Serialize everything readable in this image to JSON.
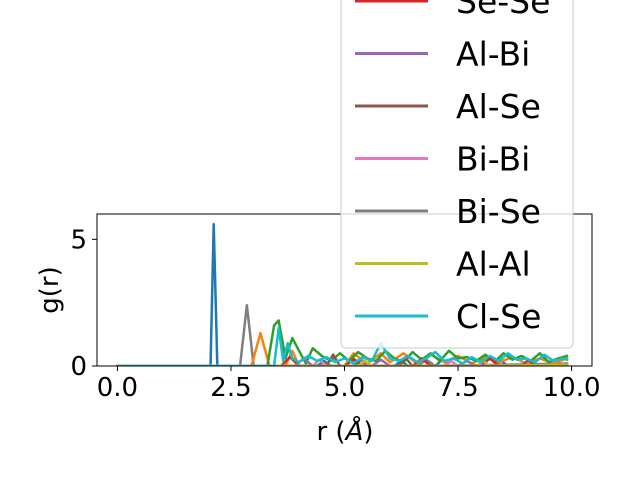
{
  "chart_data": {
    "type": "line",
    "xlabel_main": "r (",
    "xlabel_unit": "Å",
    "xlabel_close": ")",
    "ylabel": "g(r)",
    "xlim": [
      -0.45,
      10.45
    ],
    "ylim": [
      0,
      6.0
    ],
    "x_ticks": [
      {
        "value": 0.0,
        "label": "0.0"
      },
      {
        "value": 2.5,
        "label": "2.5"
      },
      {
        "value": 5.0,
        "label": "5.0"
      },
      {
        "value": 7.5,
        "label": "7.5"
      },
      {
        "value": 10.0,
        "label": "10.0"
      }
    ],
    "y_ticks": [
      {
        "value": 0,
        "label": "0"
      },
      {
        "value": 5,
        "label": "5"
      }
    ],
    "legend": {
      "placement": "upper-right",
      "entries": [
        {
          "name": "Se-Se",
          "color": "#d62728"
        },
        {
          "name": "Al-Bi",
          "color": "#9467bd"
        },
        {
          "name": "Al-Se",
          "color": "#8c564b"
        },
        {
          "name": "Bi-Bi",
          "color": "#e377c2"
        },
        {
          "name": "Bi-Se",
          "color": "#7f7f7f"
        },
        {
          "name": "Al-Al",
          "color": "#bcbd22"
        },
        {
          "name": "Cl-Se",
          "color": "#17becf"
        }
      ]
    },
    "series": [
      {
        "color": "#1f77b4",
        "x": [
          0.0,
          2.05,
          2.12,
          2.2,
          4.4,
          4.55,
          4.7,
          5.2,
          5.35,
          5.5,
          6.1,
          6.25,
          6.4,
          7.0,
          7.15,
          7.3,
          8.3,
          8.45,
          8.6,
          9.9
        ],
        "y": [
          0.0,
          0.0,
          5.6,
          0.0,
          0.0,
          0.2,
          0.0,
          0.0,
          0.25,
          0.0,
          0.0,
          0.2,
          0.0,
          0.0,
          0.25,
          0.0,
          0.0,
          0.2,
          0.0,
          0.05
        ]
      },
      {
        "color": "#7f7f7f",
        "x": [
          0.0,
          2.7,
          2.85,
          3.0,
          5.0,
          5.2,
          5.4,
          6.6,
          6.8,
          7.0,
          9.9
        ],
        "y": [
          0.0,
          0.0,
          2.4,
          0.0,
          0.0,
          0.3,
          0.0,
          0.0,
          0.25,
          0.0,
          0.1
        ]
      },
      {
        "color": "#ff7f0e",
        "x": [
          0.0,
          2.95,
          3.15,
          3.35,
          3.7,
          3.85,
          4.0,
          5.0,
          5.2,
          5.5,
          5.8,
          6.0,
          6.3,
          6.6,
          6.9,
          7.2,
          7.5,
          7.8,
          8.1,
          8.4,
          8.7,
          9.0,
          9.3,
          9.6,
          9.9
        ],
        "y": [
          0.0,
          0.0,
          1.3,
          0.0,
          0.0,
          0.6,
          0.0,
          0.0,
          0.5,
          0.1,
          0.5,
          0.15,
          0.5,
          0.1,
          0.45,
          0.15,
          0.4,
          0.1,
          0.35,
          0.15,
          0.35,
          0.1,
          0.3,
          0.1,
          0.3
        ]
      },
      {
        "color": "#2ca02c",
        "x": [
          0.0,
          3.3,
          3.45,
          3.55,
          3.7,
          3.85,
          4.0,
          4.15,
          4.3,
          4.5,
          4.7,
          4.9,
          5.1,
          5.3,
          5.5,
          5.7,
          5.9,
          6.1,
          6.3,
          6.5,
          6.7,
          6.9,
          7.1,
          7.3,
          7.5,
          7.7,
          7.9,
          8.1,
          8.3,
          8.5,
          8.7,
          8.9,
          9.1,
          9.3,
          9.5,
          9.7,
          9.9
        ],
        "y": [
          0.0,
          0.0,
          1.6,
          1.8,
          0.3,
          1.1,
          0.6,
          0.1,
          0.7,
          0.4,
          0.2,
          0.5,
          0.2,
          0.55,
          0.3,
          0.2,
          0.6,
          0.3,
          0.15,
          0.55,
          0.25,
          0.5,
          0.2,
          0.6,
          0.3,
          0.35,
          0.2,
          0.45,
          0.15,
          0.5,
          0.25,
          0.4,
          0.2,
          0.5,
          0.15,
          0.3,
          0.4
        ]
      },
      {
        "color": "#d62728",
        "x": [
          0.0,
          3.6,
          3.8,
          4.0,
          5.0,
          5.2,
          5.4,
          6.5,
          6.7,
          6.9,
          8.0,
          8.2,
          8.4,
          9.9
        ],
        "y": [
          0.0,
          0.0,
          0.35,
          0.0,
          0.0,
          0.25,
          0.0,
          0.0,
          0.3,
          0.0,
          0.0,
          0.3,
          0.0,
          0.05
        ]
      },
      {
        "color": "#9467bd",
        "x": [
          0.0,
          3.9,
          4.1,
          4.3,
          5.6,
          5.8,
          6.0,
          7.5,
          7.7,
          7.9,
          9.9
        ],
        "y": [
          0.0,
          0.0,
          0.3,
          0.0,
          0.0,
          0.25,
          0.0,
          0.0,
          0.2,
          0.0,
          0.05
        ]
      },
      {
        "color": "#8c564b",
        "x": [
          0.0,
          4.6,
          4.75,
          4.9,
          6.2,
          6.35,
          6.5,
          8.9,
          9.05,
          9.2,
          9.9
        ],
        "y": [
          0.0,
          0.0,
          0.45,
          0.0,
          0.0,
          0.3,
          0.0,
          0.0,
          0.25,
          0.0,
          0.05
        ]
      },
      {
        "color": "#e377c2",
        "x": [
          0.0,
          4.3,
          4.45,
          4.6,
          7.2,
          7.35,
          7.5,
          9.9
        ],
        "y": [
          0.0,
          0.0,
          0.25,
          0.0,
          0.0,
          0.2,
          0.0,
          0.05
        ]
      },
      {
        "color": "#bcbd22",
        "x": [
          0.0,
          5.3,
          5.45,
          5.6,
          7.9,
          8.05,
          8.2,
          9.9
        ],
        "y": [
          0.0,
          0.0,
          0.2,
          0.0,
          0.0,
          0.2,
          0.0,
          0.05
        ]
      },
      {
        "color": "#17becf",
        "x": [
          0.0,
          3.45,
          3.55,
          3.65,
          3.75,
          3.85,
          4.0,
          4.2,
          4.4,
          4.6,
          4.8,
          5.0,
          5.2,
          5.4,
          5.6,
          5.8,
          6.0,
          6.2,
          6.4,
          6.6,
          6.8,
          7.0,
          7.2,
          7.4,
          7.6,
          7.8,
          8.0,
          8.2,
          8.4,
          8.6,
          8.8,
          9.0,
          9.2,
          9.4,
          9.6,
          9.8,
          9.9
        ],
        "y": [
          0.0,
          0.0,
          1.5,
          0.2,
          0.9,
          0.3,
          0.15,
          0.4,
          0.2,
          0.35,
          0.15,
          0.3,
          0.1,
          0.35,
          0.2,
          0.9,
          0.3,
          0.2,
          0.4,
          0.15,
          0.3,
          0.55,
          0.2,
          0.3,
          0.1,
          0.35,
          0.15,
          0.4,
          0.2,
          0.5,
          0.25,
          0.3,
          0.15,
          0.45,
          0.2,
          0.3,
          0.25
        ]
      }
    ]
  }
}
